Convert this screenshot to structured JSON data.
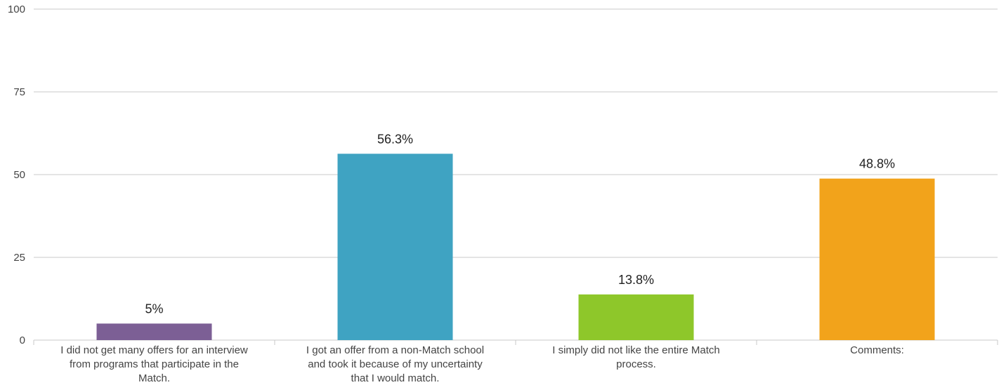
{
  "chart_data": {
    "type": "bar",
    "title": "",
    "xlabel": "",
    "ylabel": "",
    "ylim": [
      0,
      100
    ],
    "yticks": [
      "0",
      "25",
      "50",
      "75",
      "100"
    ],
    "grid": true,
    "categories": [
      [
        "I did not get many offers for an interview",
        "from programs that participate in the",
        "Match."
      ],
      [
        "I got an offer from a non-Match school",
        "and took it because of my uncertainty",
        "that I would match."
      ],
      [
        "I simply did not like the entire Match",
        "process."
      ],
      [
        "Comments:"
      ]
    ],
    "values": [
      5,
      56.3,
      13.8,
      48.8
    ],
    "value_labels": [
      "5%",
      "56.3%",
      "13.8%",
      "48.8%"
    ],
    "colors": [
      "#7c5f95",
      "#3fa3c2",
      "#8ec72a",
      "#f2a31b"
    ]
  }
}
